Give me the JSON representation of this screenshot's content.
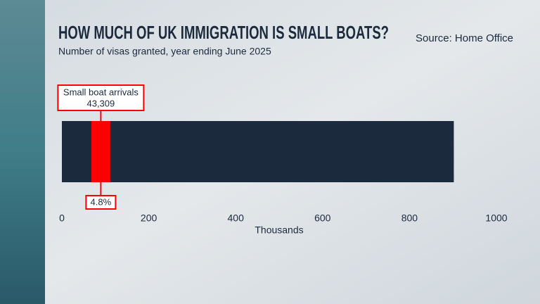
{
  "chart_data": {
    "type": "bar",
    "title": "HOW MUCH OF UK IMMIGRATION IS SMALL BOATS?",
    "subtitle": "Number of visas granted, year ending June 2025",
    "source": "Source: Home Office",
    "xlabel": "Thousands",
    "xlim": [
      0,
      1000
    ],
    "xticks": [
      0,
      200,
      400,
      600,
      800,
      1000
    ],
    "total": {
      "values": [
        902
      ],
      "color": "#1c2a3e"
    },
    "series": [
      {
        "name": "Small boat arrivals",
        "color": "#ff0000",
        "values": [
          43.309
        ],
        "value_labels": [
          "43,309"
        ]
      }
    ],
    "share": {
      "value": 4.8,
      "label": "4.8%"
    }
  }
}
